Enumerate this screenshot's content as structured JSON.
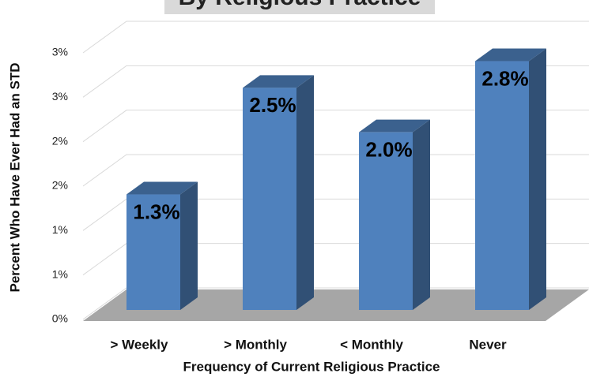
{
  "chart_data": {
    "type": "bar3d",
    "title": "By Religious Practice",
    "x_label": "Frequency of Current Religious Practice",
    "y_label": "Percent Who Have Ever Had an STD",
    "categories": [
      "> Weekly",
      "> Monthly",
      "< Monthly",
      "Never"
    ],
    "values": [
      1.3,
      2.5,
      2.0,
      2.8
    ],
    "value_labels": [
      "1.3%",
      "2.5%",
      "2.0%",
      "2.8%"
    ],
    "color": "#4f81bd",
    "ylim": [
      0,
      3.0
    ],
    "yticks": [
      {
        "value": 0,
        "label": "0%"
      },
      {
        "value": 0.5,
        "label": "1%"
      },
      {
        "value": 1.0,
        "label": "1%"
      },
      {
        "value": 1.5,
        "label": "2%"
      },
      {
        "value": 2.0,
        "label": "2%"
      },
      {
        "value": 2.5,
        "label": "3%"
      },
      {
        "value": 3.0,
        "label": "3%"
      }
    ],
    "grid": true
  }
}
